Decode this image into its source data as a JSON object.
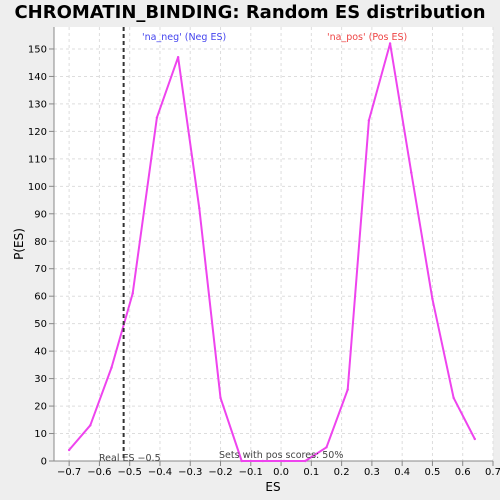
{
  "chart_data": {
    "type": "line",
    "title": "CHROMATIN_BINDING: Random ES distribution",
    "xlabel": "ES",
    "ylabel": "P(ES)",
    "xlim": [
      -0.75,
      0.7
    ],
    "ylim": [
      0,
      158
    ],
    "x_ticks": [
      -0.7,
      -0.6,
      -0.5,
      -0.4,
      -0.3,
      -0.2,
      -0.1,
      0.0,
      0.1,
      0.2,
      0.3,
      0.4,
      0.5,
      0.6,
      0.7
    ],
    "x_tick_labels": [
      "−0.7",
      "−0.6",
      "−0.5",
      "−0.4",
      "−0.3",
      "−0.2",
      "−0.1",
      "0.0",
      "0.1",
      "0.2",
      "0.3",
      "0.4",
      "0.5",
      "0.6",
      "0.7"
    ],
    "y_ticks": [
      0,
      10,
      20,
      30,
      40,
      50,
      60,
      70,
      80,
      90,
      100,
      110,
      120,
      130,
      140,
      150
    ],
    "y_tick_labels": [
      "0",
      "10",
      "20",
      "30",
      "40",
      "50",
      "60",
      "70",
      "80",
      "90",
      "100",
      "110",
      "120",
      "130",
      "140",
      "150"
    ],
    "grid": true,
    "line_color": "#ee44ee",
    "series": [
      {
        "x": [
          -0.7,
          -0.63,
          -0.56,
          -0.49,
          -0.41,
          -0.34,
          -0.27,
          -0.2,
          -0.13,
          -0.06,
          0.01,
          0.08,
          0.15,
          0.22,
          0.29,
          0.36,
          0.43,
          0.5,
          0.57,
          0.64
        ],
        "values": [
          4,
          13,
          34,
          61,
          125,
          147,
          92,
          23,
          0,
          0,
          0,
          0,
          5,
          26,
          124,
          152,
          105,
          59,
          23,
          8
        ]
      }
    ],
    "real_es": {
      "x": -0.52,
      "label": "Real ES −0.5",
      "color": "#333333"
    },
    "annotations": {
      "neg_label": "'na_neg' (Neg ES)",
      "neg_color": "#4444ee",
      "pos_label": "'na_pos' (Pos ES)",
      "pos_color": "#ee4444",
      "sets_text": "Sets with pos scores: 50%"
    }
  }
}
